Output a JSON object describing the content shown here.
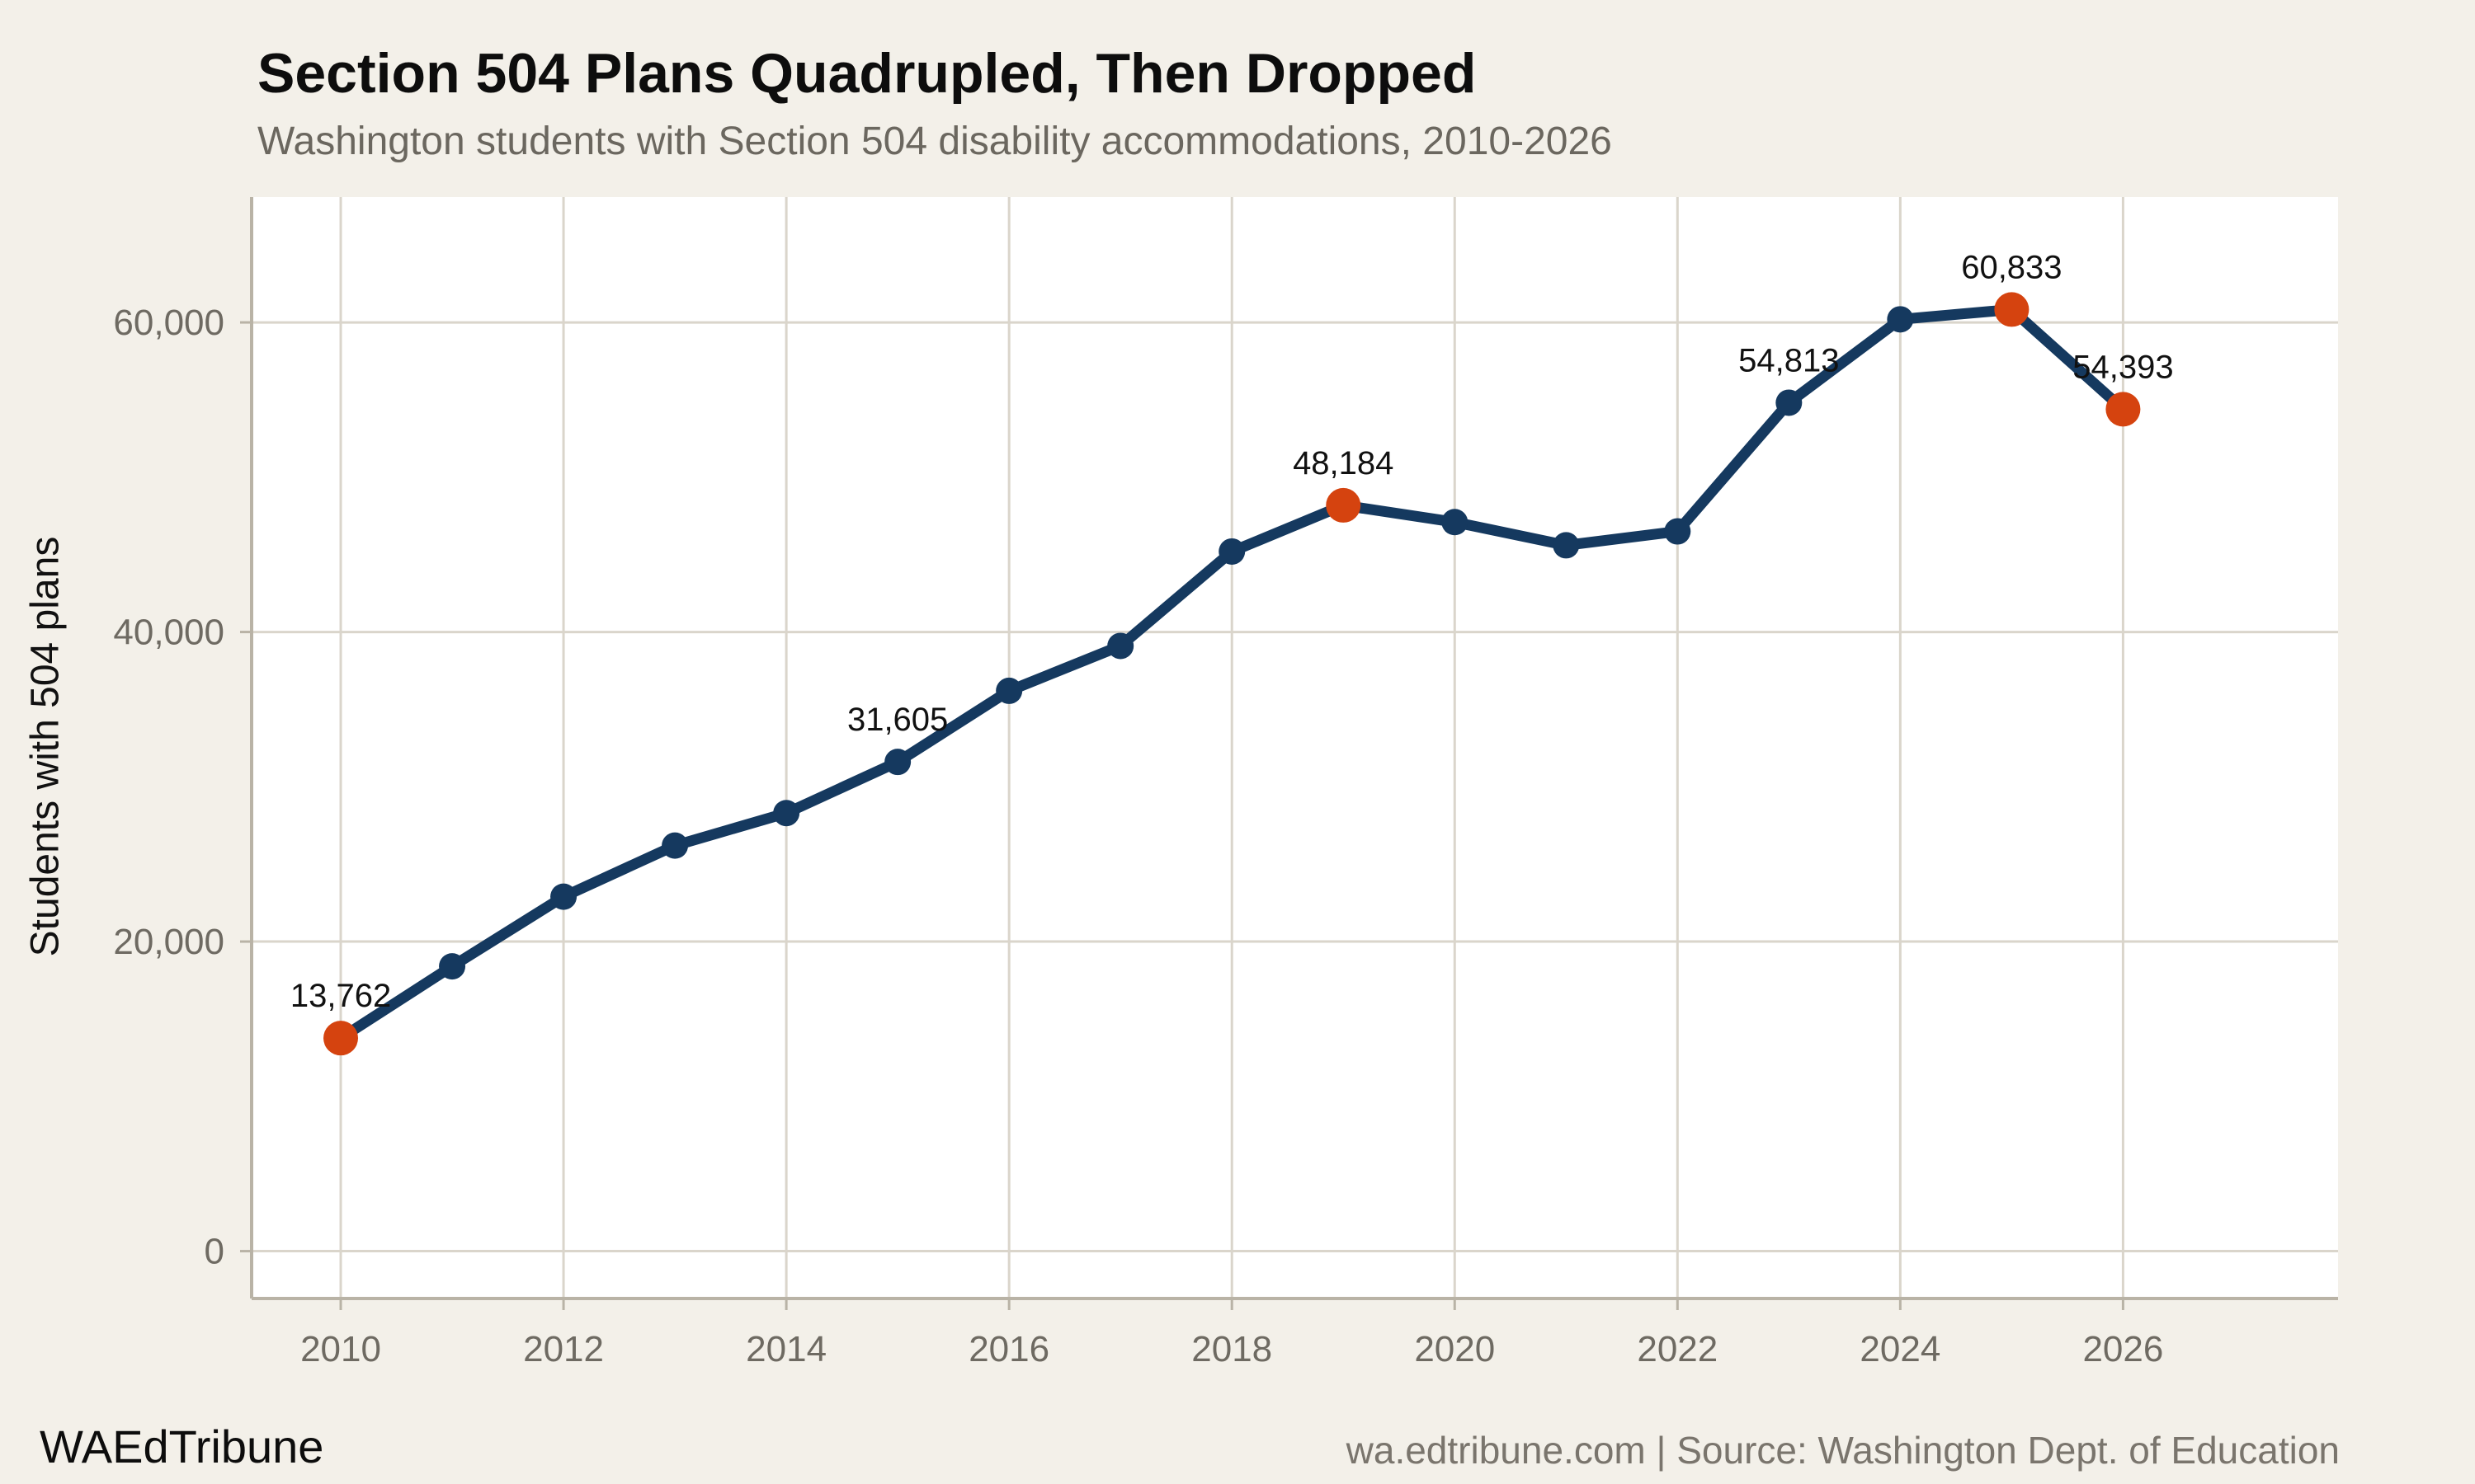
{
  "header": {
    "title": "Section 504 Plans Quadrupled, Then Dropped",
    "subtitle": "Washington students with Section 504 disability accommodations, 2010-2026"
  },
  "footer": {
    "brand": "WAEdTribune",
    "source": "wa.edtribune.com | Source: Washington Dept. of Education"
  },
  "chart_data": {
    "type": "line",
    "title": "Section 504 Plans Quadrupled, Then Dropped",
    "subtitle": "Washington students with Section 504 disability accommodations, 2010-2026",
    "xlabel": "",
    "ylabel": "Students with 504 plans",
    "x": [
      2010,
      2011,
      2012,
      2013,
      2014,
      2015,
      2016,
      2017,
      2018,
      2019,
      2020,
      2021,
      2022,
      2023,
      2024,
      2025,
      2026
    ],
    "values": [
      13762,
      18400,
      22900,
      26200,
      28300,
      31605,
      36200,
      39100,
      45200,
      48184,
      47100,
      45600,
      46500,
      54813,
      60200,
      60833,
      54393
    ],
    "highlighted_years": [
      2010,
      2019,
      2025,
      2026
    ],
    "point_labels": [
      {
        "year": 2010,
        "label": "13,762"
      },
      {
        "year": 2015,
        "label": "31,605"
      },
      {
        "year": 2019,
        "label": "48,184"
      },
      {
        "year": 2023,
        "label": "54,813"
      },
      {
        "year": 2025,
        "label": "60,833"
      },
      {
        "year": 2026,
        "label": "54,393"
      }
    ],
    "x_ticks": [
      2010,
      2012,
      2014,
      2016,
      2018,
      2020,
      2022,
      2024,
      2026
    ],
    "y_ticks": [
      0,
      20000,
      40000,
      60000
    ],
    "y_tick_labels": [
      "0",
      "20,000",
      "40,000",
      "60,000"
    ],
    "xlim": [
      2009.2,
      2027.93
    ],
    "ylim": [
      -3060,
      68100
    ],
    "grid": true,
    "legend": "none",
    "colors": {
      "background": "#f3f0e9",
      "plot_background": "#ffffff",
      "gridline": "#dad5cb",
      "axis_line": "#b9b3a6",
      "tick_label": "#6e6a62",
      "line": "#15395f",
      "point": "#15395f",
      "highlight": "#d5430f",
      "data_label": "#111111"
    }
  }
}
